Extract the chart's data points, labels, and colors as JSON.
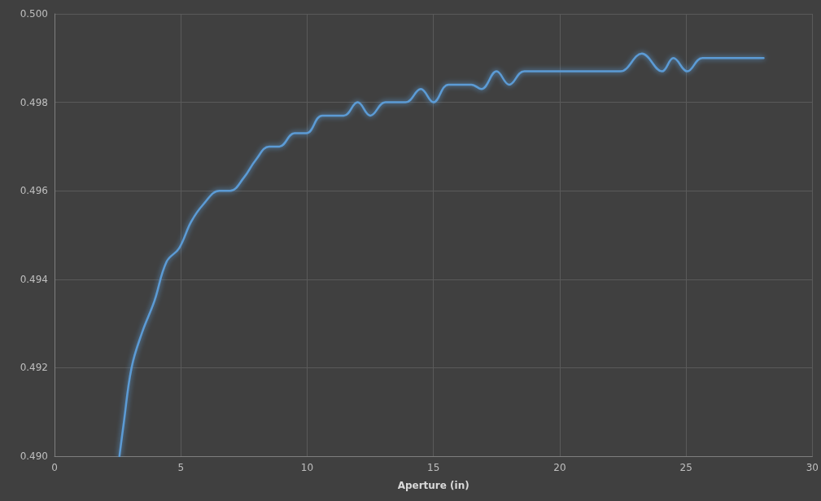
{
  "chart_data": {
    "type": "line",
    "xlabel": "Aperture (in)",
    "marker": "none",
    "line_style": "solid",
    "grid": true,
    "xlim": [
      0,
      30
    ],
    "xticks": [
      0,
      5,
      10,
      15,
      20,
      25,
      30
    ],
    "ylim": [
      0.49,
      0.5
    ],
    "yticks": [
      {
        "value": 0.49,
        "label": "0.490"
      },
      {
        "value": 0.492,
        "label": "0.492"
      },
      {
        "value": 0.494,
        "label": "0.494"
      },
      {
        "value": 0.496,
        "label": "0.496"
      },
      {
        "value": 0.498,
        "label": "0.498"
      },
      {
        "value": 0.5,
        "label": "0.500"
      }
    ],
    "series": [
      {
        "color": "#5b9bd5",
        "x": [
          2.57,
          2.73,
          3.05,
          3.47,
          3.95,
          4.44,
          4.93,
          5.41,
          5.9,
          6.53,
          6.95,
          7.5,
          7.97,
          8.5,
          8.9,
          9.5,
          9.97,
          10.6,
          11.45,
          12.0,
          12.5,
          13.1,
          13.9,
          14.5,
          15.0,
          15.6,
          16.5,
          16.9,
          17.5,
          18.0,
          18.6,
          22.05,
          22.4,
          23.25,
          24.05,
          24.5,
          25.05,
          25.65,
          28.07
        ],
        "values": [
          0.49,
          0.4907,
          0.492,
          0.4928,
          0.4935,
          0.4944,
          0.4947,
          0.4953,
          0.4957,
          0.496,
          0.496,
          0.4963,
          0.4967,
          0.497,
          0.497,
          0.4973,
          0.4973,
          0.4977,
          0.4977,
          0.498,
          0.4977,
          0.498,
          0.498,
          0.4983,
          0.498,
          0.4984,
          0.4984,
          0.4983,
          0.4987,
          0.4984,
          0.4987,
          0.4987,
          0.4987,
          0.4991,
          0.4987,
          0.499,
          0.4987,
          0.499,
          0.499
        ]
      }
    ]
  }
}
